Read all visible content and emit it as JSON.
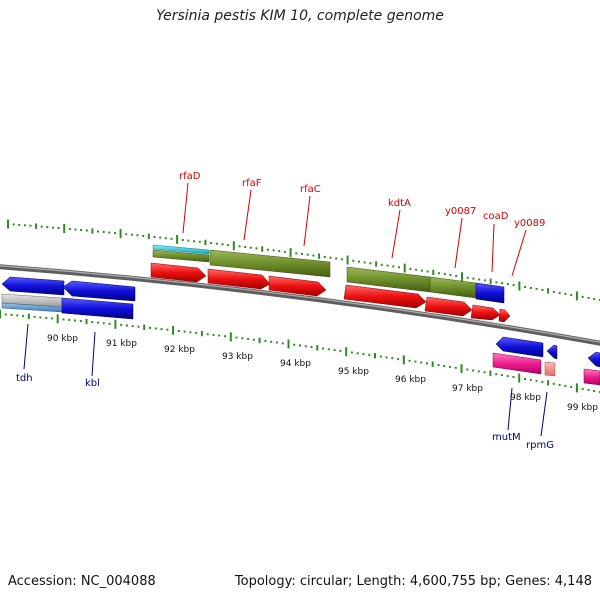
{
  "title": "Yersinia pestis KIM 10, complete genome",
  "accession_label": "Accession: NC_004088",
  "summary_label": "Topology: circular; Length: 4,600,755 bp; Genes: 4,148",
  "colors": {
    "backbone": "#7a7a7a",
    "tick": "#2e8b22",
    "gene_label_top": "#d40000",
    "gene_label_bottom": "#00007f",
    "blue": "#1010d8",
    "red": "#ee1111",
    "olive": "#6e8e2a",
    "cyan": "#22c6d8",
    "gray": "#b6b6b6",
    "pink": "#ee1e90",
    "salmon": "#f28a82"
  },
  "kbp_labels": [
    "90 kbp",
    "91 kbp",
    "92 kbp",
    "93 kbp",
    "94 kbp",
    "95 kbp",
    "96 kbp",
    "97 kbp",
    "98 kbp",
    "99 kbp"
  ],
  "genes_top": [
    "rfaD",
    "rfaF",
    "rfaC",
    "kdtA",
    "y0087",
    "coaD",
    "y0089"
  ],
  "genes_bottom": [
    "tdh",
    "kbl",
    "mutM",
    "rpmG"
  ]
}
